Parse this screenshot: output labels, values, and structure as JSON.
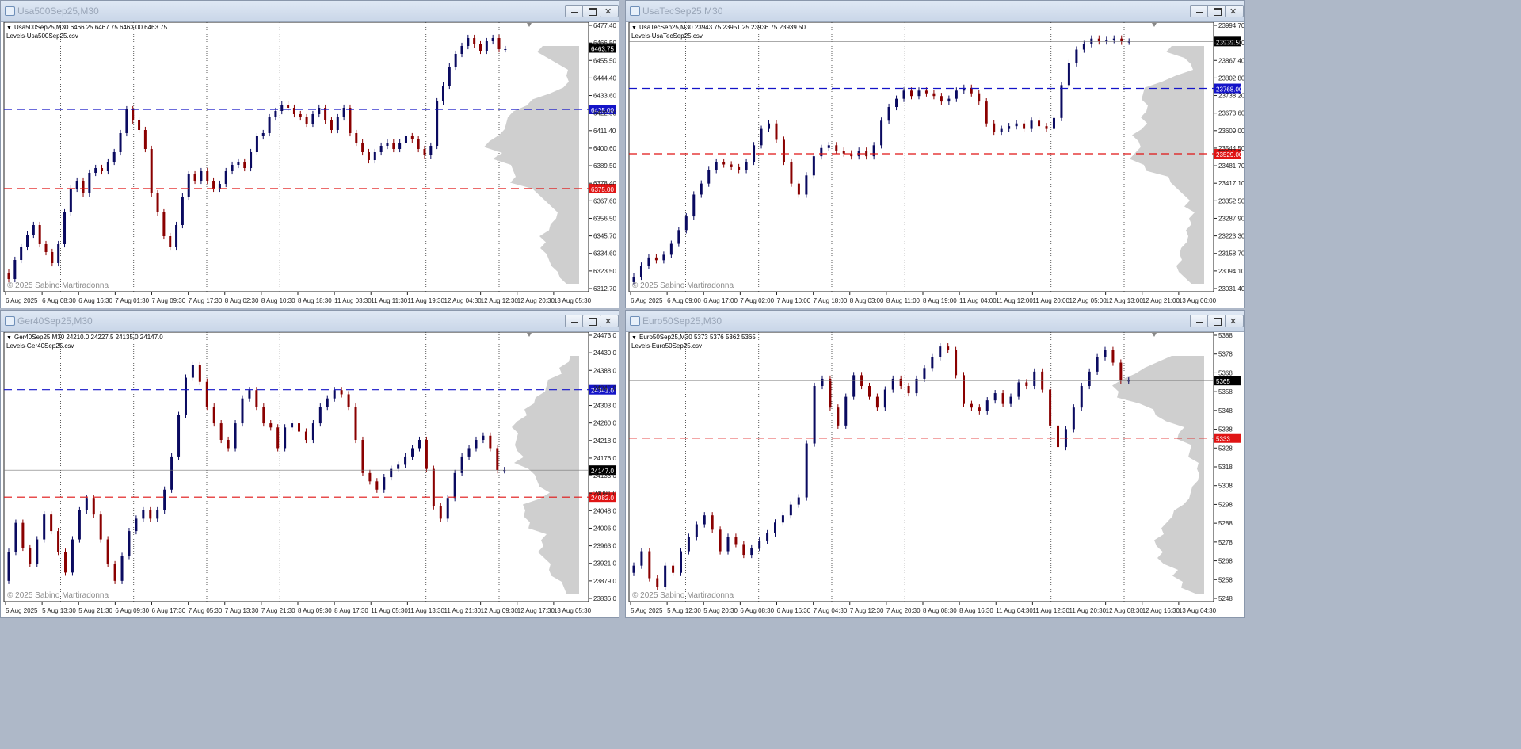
{
  "charts": [
    {
      "window_title": "Usa500Sep25,M30",
      "info_line": "Usa500Sep25,M30  6466.25 6467.75 6463.00 6463.75",
      "indicator_label": "Levels-Usa500Sep25.csv",
      "watermark": "© 2025 Sabino Martiradonna",
      "y_ticks": [
        "6477.40",
        "6466.50",
        "6455.50",
        "6444.40",
        "6433.60",
        "6422.50",
        "6411.40",
        "6400.60",
        "6389.50",
        "6378.40",
        "6367.60",
        "6356.50",
        "6345.70",
        "6334.60",
        "6323.50",
        "6312.70"
      ],
      "x_ticks": [
        "6 Aug 2025",
        "6 Aug 08:30",
        "6 Aug 16:30",
        "7 Aug 01:30",
        "7 Aug 09:30",
        "7 Aug 17:30",
        "8 Aug 02:30",
        "8 Aug 10:30",
        "8 Aug 18:30",
        "11 Aug 03:30",
        "11 Aug 11:30",
        "11 Aug 19:30",
        "12 Aug 04:30",
        "12 Aug 12:30",
        "12 Aug 20:30",
        "13 Aug 05:30"
      ],
      "price_marks": [
        {
          "value": "6463.75",
          "num": 6463.75,
          "color": "#000000",
          "line": "solid"
        },
        {
          "value": "6425.00",
          "num": 6425.0,
          "color": "#1414c8",
          "line": "dashed"
        },
        {
          "value": "6375.00",
          "num": 6375.0,
          "color": "#e01414",
          "line": "dashed"
        }
      ],
      "ymin": 6310,
      "ymax": 6480,
      "path": [
        6322,
        6318,
        6330,
        6338,
        6346,
        6352,
        6340,
        6335,
        6328,
        6340,
        6360,
        6375,
        6380,
        6372,
        6385,
        6388,
        6386,
        6392,
        6398,
        6410,
        6425,
        6418,
        6412,
        6400,
        6372,
        6360,
        6345,
        6338,
        6352,
        6370,
        6384,
        6380,
        6386,
        6380,
        6375,
        6378,
        6386,
        6390,
        6392,
        6388,
        6398,
        6408,
        6410,
        6420,
        6424,
        6428,
        6426,
        6422,
        6420,
        6416,
        6422,
        6426,
        6418,
        6412,
        6420,
        6426,
        6410,
        6404,
        6398,
        6393,
        6398,
        6402,
        6404,
        6400,
        6404,
        6408,
        6406,
        6400,
        6396,
        6402,
        6430,
        6440,
        6452,
        6460,
        6465,
        6470,
        6466,
        6462,
        6468,
        6470,
        6463
      ]
    },
    {
      "window_title": "UsaTecSep25,M30",
      "info_line": "UsaTecSep25,M30  23943.75 23951.25 23936.75 23939.50",
      "indicator_label": "Levels-UsaTecSep25.csv",
      "watermark": "© 2025 Sabino Martiradonna",
      "y_ticks": [
        "23994.70",
        "23931.10",
        "23867.40",
        "23802.80",
        "23738.20",
        "23673.60",
        "23609.00",
        "23544.50",
        "23481.70",
        "23417.10",
        "23352.50",
        "23287.90",
        "23223.30",
        "23158.70",
        "23094.10",
        "23031.40"
      ],
      "x_ticks": [
        "6 Aug 2025",
        "6 Aug 09:00",
        "6 Aug 17:00",
        "7 Aug 02:00",
        "7 Aug 10:00",
        "7 Aug 18:00",
        "8 Aug 03:00",
        "8 Aug 11:00",
        "8 Aug 19:00",
        "11 Aug 04:00",
        "11 Aug 12:00",
        "11 Aug 20:00",
        "12 Aug 05:00",
        "12 Aug 13:00",
        "12 Aug 21:00",
        "13 Aug 06:00"
      ],
      "price_marks": [
        {
          "value": "23939.50",
          "num": 23939.5,
          "color": "#000000",
          "line": "solid"
        },
        {
          "value": "23768.00",
          "num": 23768.0,
          "color": "#1414c8",
          "line": "dashed"
        },
        {
          "value": "23529.00",
          "num": 23529.0,
          "color": "#e01414",
          "line": "dashed"
        }
      ],
      "ymin": 23025,
      "ymax": 24010,
      "path": [
        23060,
        23080,
        23120,
        23150,
        23140,
        23160,
        23200,
        23250,
        23300,
        23380,
        23420,
        23470,
        23500,
        23490,
        23480,
        23470,
        23500,
        23560,
        23620,
        23640,
        23580,
        23500,
        23420,
        23380,
        23450,
        23520,
        23550,
        23560,
        23540,
        23530,
        23520,
        23540,
        23520,
        23560,
        23650,
        23700,
        23730,
        23760,
        23740,
        23760,
        23750,
        23740,
        23720,
        23730,
        23760,
        23770,
        23750,
        23720,
        23640,
        23610,
        23620,
        23630,
        23640,
        23620,
        23650,
        23630,
        23620,
        23660,
        23780,
        23860,
        23910,
        23930,
        23950,
        23940,
        23945,
        23950,
        23939
      ]
    },
    {
      "window_title": "Ger40Sep25,M30",
      "info_line": "Ger40Sep25,M30  24210.0 24227.5 24135.0 24147.0",
      "indicator_label": "Levels-Ger40Sep25.csv",
      "watermark": "© 2025 Sabino Martiradonna",
      "y_ticks": [
        "24473.0",
        "24430.0",
        "24388.0",
        "24345.0",
        "24303.0",
        "24260.0",
        "24218.0",
        "24176.0",
        "24133.0",
        "24091.0",
        "24048.0",
        "24006.0",
        "23963.0",
        "23921.0",
        "23879.0",
        "23836.0"
      ],
      "x_ticks": [
        "5 Aug 2025",
        "5 Aug 13:30",
        "5 Aug 21:30",
        "6 Aug 09:30",
        "6 Aug 17:30",
        "7 Aug 05:30",
        "7 Aug 13:30",
        "7 Aug 21:30",
        "8 Aug 09:30",
        "8 Aug 17:30",
        "11 Aug 05:30",
        "11 Aug 13:30",
        "11 Aug 21:30",
        "12 Aug 09:30",
        "12 Aug 17:30",
        "13 Aug 05:30"
      ],
      "price_marks": [
        {
          "value": "24147.0",
          "num": 24147.0,
          "color": "#000000",
          "line": "solid"
        },
        {
          "value": "24341.0",
          "num": 24341.0,
          "color": "#1414c8",
          "line": "dashed"
        },
        {
          "value": "24082.0",
          "num": 24082.0,
          "color": "#e01414",
          "line": "dashed"
        }
      ],
      "ymin": 23830,
      "ymax": 24480,
      "path": [
        23880,
        23950,
        24020,
        23960,
        23920,
        23980,
        24040,
        24000,
        23950,
        23900,
        23980,
        24050,
        24080,
        24040,
        23980,
        23920,
        23880,
        23940,
        24000,
        24030,
        24050,
        24030,
        24050,
        24100,
        24180,
        24280,
        24370,
        24400,
        24360,
        24300,
        24260,
        24220,
        24200,
        24260,
        24320,
        24340,
        24300,
        24260,
        24250,
        24200,
        24250,
        24260,
        24240,
        24220,
        24260,
        24300,
        24320,
        24340,
        24330,
        24300,
        24220,
        24140,
        24120,
        24100,
        24130,
        24150,
        24160,
        24180,
        24200,
        24220,
        24150,
        24060,
        24030,
        24080,
        24140,
        24180,
        24200,
        24220,
        24230,
        24200,
        24147
      ]
    },
    {
      "window_title": "Euro50Sep25,M30",
      "info_line": "Euro50Sep25,M30  5373 5376 5362 5365",
      "indicator_label": "Levels-Euro50Sep25.csv",
      "watermark": "© 2025 Sabino Martiradonna",
      "y_ticks": [
        "5388",
        "5378",
        "5368",
        "5358",
        "5348",
        "5338",
        "5328",
        "5318",
        "5308",
        "5298",
        "5288",
        "5278",
        "5268",
        "5258",
        "5248"
      ],
      "x_ticks": [
        "5 Aug 2025",
        "5 Aug 12:30",
        "5 Aug 20:30",
        "6 Aug 08:30",
        "6 Aug 16:30",
        "7 Aug 04:30",
        "7 Aug 12:30",
        "7 Aug 20:30",
        "8 Aug 08:30",
        "8 Aug 16:30",
        "11 Aug 04:30",
        "11 Aug 12:30",
        "11 Aug 20:30",
        "12 Aug 08:30",
        "12 Aug 16:30",
        "13 Aug 04:30"
      ],
      "price_marks": [
        {
          "value": "5365",
          "num": 5365,
          "color": "#000000",
          "line": "solid"
        },
        {
          "value": "5333",
          "num": 5333,
          "color": "#e01414",
          "line": "dashed"
        }
      ],
      "ymin": 5242,
      "ymax": 5392,
      "path": [
        5258,
        5262,
        5270,
        5255,
        5250,
        5262,
        5258,
        5270,
        5278,
        5285,
        5290,
        5282,
        5270,
        5278,
        5274,
        5268,
        5272,
        5276,
        5280,
        5286,
        5290,
        5296,
        5300,
        5330,
        5362,
        5366,
        5350,
        5340,
        5356,
        5368,
        5362,
        5356,
        5350,
        5360,
        5366,
        5362,
        5358,
        5366,
        5372,
        5378,
        5384,
        5382,
        5368,
        5352,
        5350,
        5348,
        5354,
        5358,
        5352,
        5356,
        5364,
        5362,
        5370,
        5360,
        5340,
        5328,
        5338,
        5350,
        5362,
        5370,
        5378,
        5382,
        5375,
        5365
      ]
    }
  ]
}
